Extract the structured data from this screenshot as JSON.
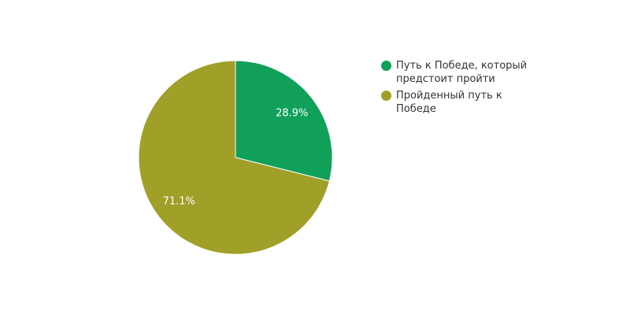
{
  "chart_data": {
    "type": "pie",
    "categories": [
      "Путь к Победе, который предстоит пройти",
      "Пройденный путь к Победе"
    ],
    "values": [
      28.9,
      71.1
    ],
    "value_labels": [
      "28.9%",
      "71.1%"
    ],
    "colors": [
      "#10a05a",
      "#a09f27"
    ],
    "legend": "right"
  }
}
